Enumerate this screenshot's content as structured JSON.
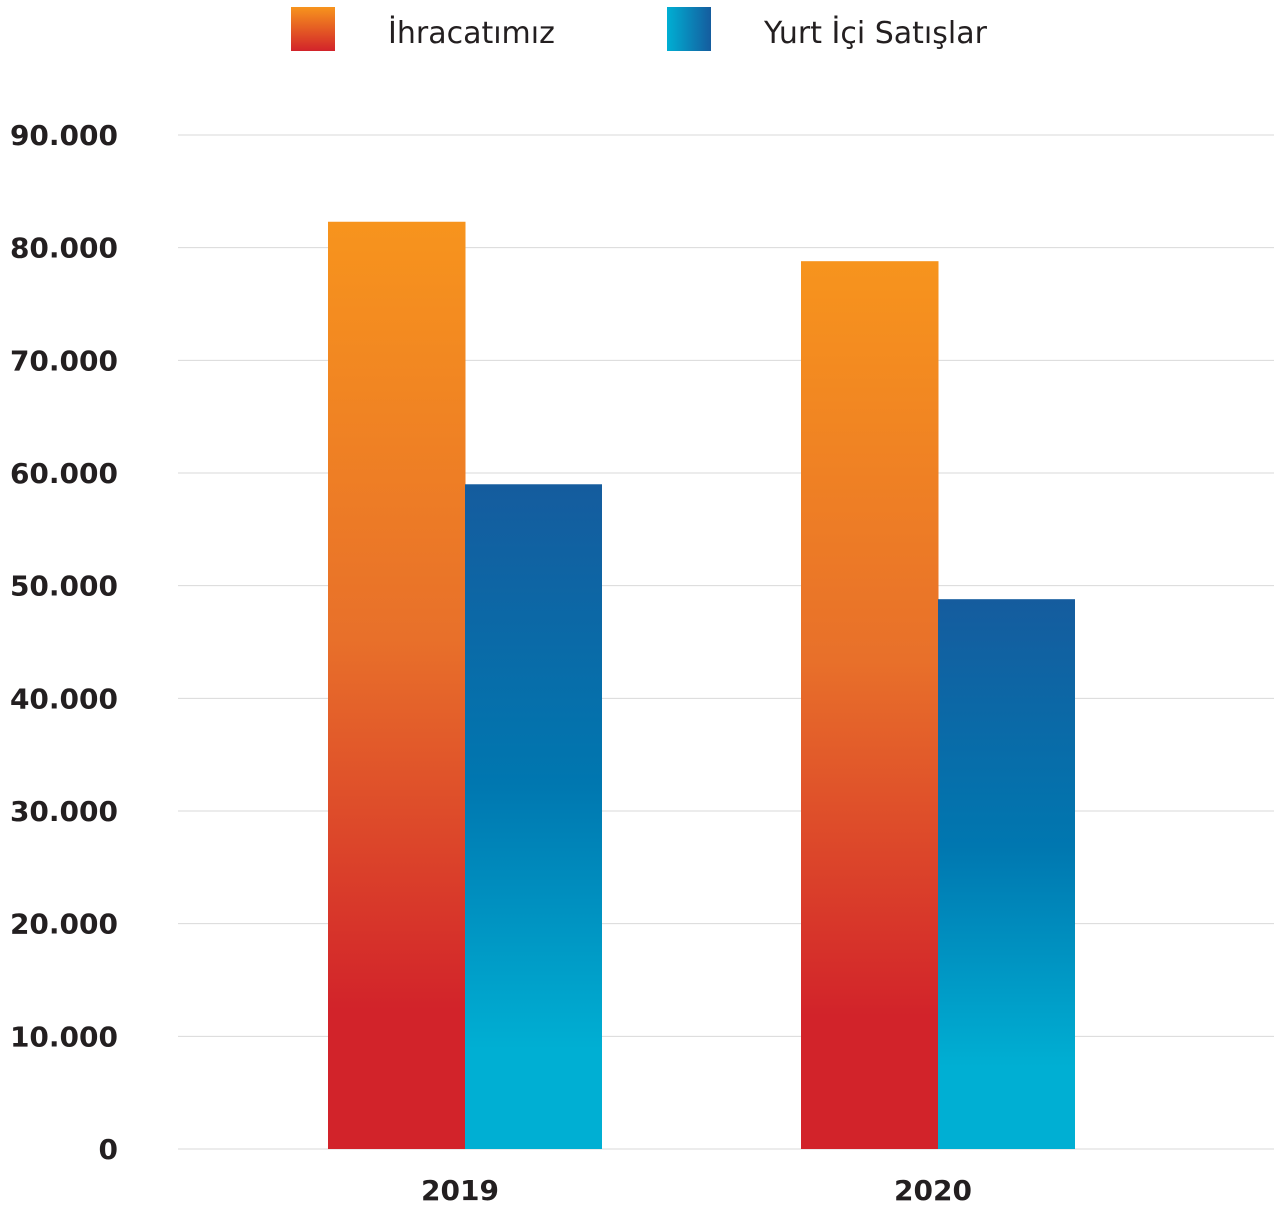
{
  "chart_data": {
    "type": "bar",
    "categories": [
      "2019",
      "2020"
    ],
    "series": [
      {
        "name": "İhracatımız",
        "values": [
          82300,
          78800
        ]
      },
      {
        "name": "Yurt İçi Satışlar",
        "values": [
          59000,
          48800
        ]
      }
    ],
    "ylim": [
      0,
      90000
    ],
    "yticks": [
      0,
      10000,
      20000,
      30000,
      40000,
      50000,
      60000,
      70000,
      80000,
      90000
    ],
    "ytick_labels": [
      "0",
      "10.000",
      "20.000",
      "30.000",
      "40.000",
      "50.000",
      "60.000",
      "70.000",
      "80.000",
      "90.000"
    ],
    "grid": true,
    "legend_position": "top",
    "colors": {
      "export_gradient": [
        "#f7941d",
        "#e8702a",
        "#d2232a"
      ],
      "domestic_gradient": [
        "#155c9e",
        "#0077b0",
        "#00afd3"
      ],
      "grid": "#d9d9d9",
      "text": "#231f20"
    }
  }
}
